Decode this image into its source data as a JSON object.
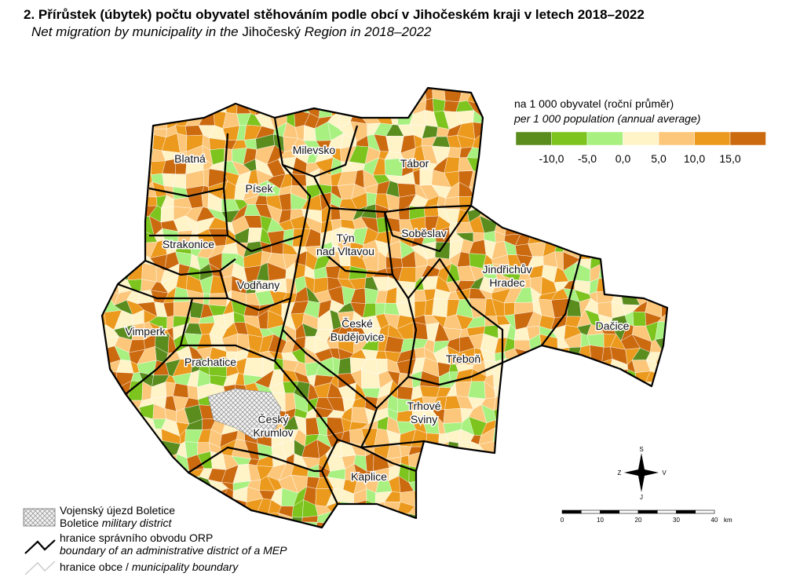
{
  "title": "2. Přírůstek (úbytek) počtu obyvatel stěhováním podle obcí v Jihočeském kraji v letech 2018–2022",
  "subtitle": [
    {
      "text": "Net migration by municipality in the ",
      "italic": true
    },
    {
      "text": "Jihočeský",
      "italic": false
    },
    {
      "text": " Region in 2018–2022",
      "italic": true
    }
  ],
  "legend": {
    "title": "na 1 000 obyvatel (roční průměr)",
    "title_en": "per 1 000 population (annual average)",
    "colors": [
      "#5a8c1e",
      "#7dc41e",
      "#a8f080",
      "#fff3c8",
      "#fcc77a",
      "#ec9a1e",
      "#cc6a10"
    ],
    "labels": [
      "-10,0",
      "-5,0",
      "0,0",
      "5,0",
      "10,0",
      "15,0"
    ]
  },
  "districts": [
    {
      "lines": [
        "Blatná"
      ]
    },
    {
      "lines": [
        "Milevsko"
      ]
    },
    {
      "lines": [
        "Tábor"
      ]
    },
    {
      "lines": [
        "Písek"
      ]
    },
    {
      "lines": [
        "Soběslav"
      ]
    },
    {
      "lines": [
        "Strakonice"
      ]
    },
    {
      "lines": [
        "Týn",
        "nad Vltavou"
      ]
    },
    {
      "lines": [
        "Jindřichův",
        "Hradec"
      ]
    },
    {
      "lines": [
        "Vodňany"
      ]
    },
    {
      "lines": [
        "Dačice"
      ]
    },
    {
      "lines": [
        "Vimperk"
      ]
    },
    {
      "lines": [
        "České",
        "Budějovice"
      ]
    },
    {
      "lines": [
        "Prachatice"
      ]
    },
    {
      "lines": [
        "Třeboň"
      ]
    },
    {
      "lines": [
        "Trhové",
        "Sviny"
      ]
    },
    {
      "lines": [
        "Český",
        "Krumlov"
      ]
    },
    {
      "lines": [
        "Kaplice"
      ]
    }
  ],
  "map_legend": [
    {
      "lines": [
        [
          {
            "text": "Vojenský újezd Boletice",
            "italic": false
          }
        ],
        [
          {
            "text": "Boletice ",
            "italic": false
          },
          {
            "text": "military district",
            "italic": true
          }
        ]
      ]
    },
    {
      "lines": [
        [
          {
            "text": "hranice správního obvodu ORP",
            "italic": false
          }
        ],
        [
          {
            "text": "boundary of an administrative district of a MEP",
            "italic": true
          }
        ]
      ]
    },
    {
      "lines": [
        [
          {
            "text": "hranice obce / ",
            "italic": false
          },
          {
            "text": "municipality boundary",
            "italic": true
          }
        ]
      ]
    }
  ],
  "compass": {
    "north": "S",
    "west": "Z",
    "east": "V",
    "south": "J"
  },
  "scale": {
    "labels": [
      "0",
      "10",
      "20",
      "30",
      "40"
    ],
    "unit": "km"
  }
}
